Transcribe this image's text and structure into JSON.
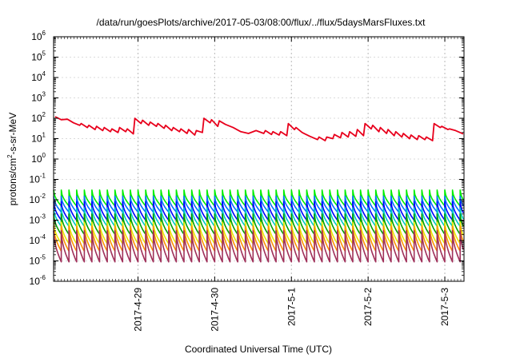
{
  "chart_data": {
    "type": "line",
    "title": "/data/run/goesPlots/archive/2017-05-03/08:00/flux/../flux/5daysMarsFluxes.txt",
    "xlabel": "Coordinated Universal Time (UTC)",
    "ylabel_parts": [
      "protons/cm",
      "2",
      "-s-sr-MeV"
    ],
    "y_scale": "log",
    "ylim_exponents": [
      -6,
      6
    ],
    "y_tick_exponents": [
      -6,
      -5,
      -4,
      -3,
      -2,
      -1,
      0,
      1,
      2,
      3,
      4,
      5,
      6
    ],
    "y_tick_base": "10",
    "xlim_days": [
      27.9,
      33.25
    ],
    "x_ticks": [
      {
        "day": 29,
        "label": "2017-4-29"
      },
      {
        "day": 30,
        "label": "2017-4-30"
      },
      {
        "day": 31,
        "label": "2017-5-1"
      },
      {
        "day": 32,
        "label": "2017-5-2"
      },
      {
        "day": 33,
        "label": "2017-5-3"
      }
    ],
    "grid": true,
    "series": [
      {
        "color": "#e8001c",
        "x": [
          27.92,
          28.0,
          28.08,
          28.16,
          28.24,
          28.26,
          28.34,
          28.36,
          28.44,
          28.46,
          28.54,
          28.56,
          28.64,
          28.66,
          28.74,
          28.76,
          28.84,
          28.86,
          28.94,
          28.96,
          29.04,
          29.06,
          29.14,
          29.16,
          29.24,
          29.26,
          29.34,
          29.36,
          29.44,
          29.46,
          29.54,
          29.56,
          29.64,
          29.66,
          29.74,
          29.76,
          29.84,
          29.86,
          29.94,
          29.96,
          30.04,
          30.06,
          30.14,
          30.24,
          30.34,
          30.44,
          30.54,
          30.64,
          30.66,
          30.74,
          30.76,
          30.84,
          30.86,
          30.94,
          30.96,
          31.04,
          31.06,
          31.14,
          31.24,
          31.34,
          31.36,
          31.44,
          31.46,
          31.54,
          31.56,
          31.64,
          31.66,
          31.74,
          31.76,
          31.84,
          31.86,
          31.94,
          31.96,
          32.04,
          32.06,
          32.14,
          32.16,
          32.24,
          32.26,
          32.34,
          32.36,
          32.44,
          32.46,
          32.54,
          32.56,
          32.64,
          32.66,
          32.74,
          32.76,
          32.84,
          32.86,
          32.94,
          32.96,
          33.04,
          33.06,
          33.14,
          33.24
        ],
        "values": [
          120,
          85,
          90,
          60,
          45,
          55,
          35,
          45,
          28,
          40,
          25,
          35,
          22,
          30,
          20,
          35,
          22,
          30,
          17,
          100,
          55,
          80,
          45,
          65,
          40,
          55,
          32,
          45,
          25,
          35,
          22,
          30,
          18,
          28,
          15,
          25,
          20,
          100,
          60,
          85,
          40,
          75,
          50,
          35,
          22,
          18,
          25,
          18,
          25,
          16,
          22,
          15,
          22,
          14,
          55,
          28,
          35,
          20,
          13,
          9,
          12,
          8,
          12,
          10,
          16,
          11,
          20,
          12,
          22,
          13,
          28,
          14,
          55,
          30,
          45,
          22,
          35,
          18,
          28,
          14,
          22,
          12,
          18,
          10,
          15,
          9,
          14,
          9,
          12,
          8,
          55,
          35,
          40,
          28,
          30,
          25,
          17
        ]
      }
    ],
    "spike_bands": [
      {
        "color": "#00ee00",
        "low": 0.005,
        "high": 0.03
      },
      {
        "color": "#0070ff",
        "low": 0.0025,
        "high": 0.015
      },
      {
        "color": "#0000ff",
        "low": 0.001,
        "high": 0.008
      },
      {
        "color": "#00c8c8",
        "low": 0.0005,
        "high": 0.004
      },
      {
        "color": "#00a000",
        "low": 0.0002,
        "high": 0.002
      },
      {
        "color": "#e8e800",
        "low": 7e-05,
        "high": 0.0008
      },
      {
        "color": "#ff9000",
        "low": 3e-05,
        "high": 0.0005
      },
      {
        "color": "#a0305a",
        "low": 9e-06,
        "high": 0.0003
      }
    ],
    "spike_cycle_days": 0.1
  }
}
